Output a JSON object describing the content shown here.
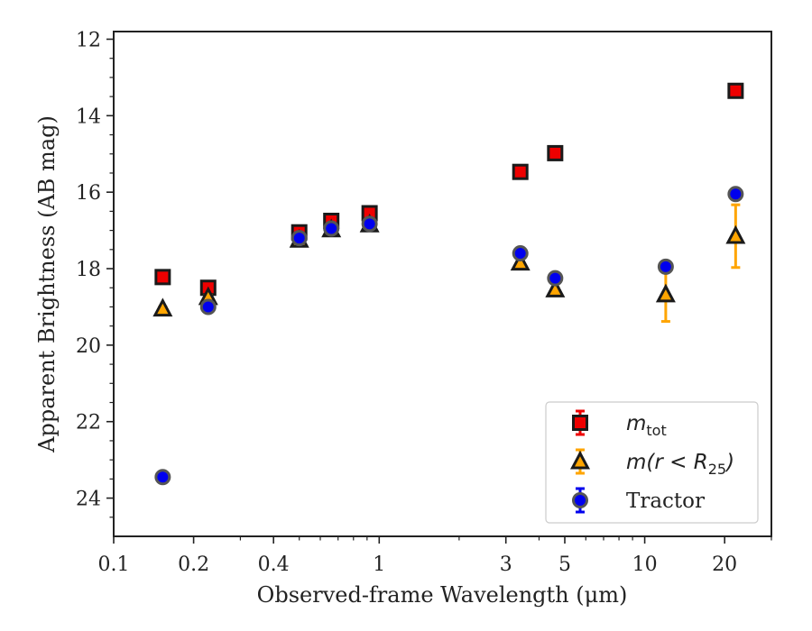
{
  "chart_data": {
    "type": "scatter",
    "xlabel": "Observed-frame Wavelength (μm)",
    "ylabel": "Apparent Brightness (AB mag)",
    "xscale": "log",
    "xlim": [
      0.1,
      30
    ],
    "ylim": [
      25,
      11.8
    ],
    "y_inverted": true,
    "x_ticks": [
      0.1,
      0.2,
      0.4,
      1,
      3,
      5,
      10,
      20
    ],
    "x_tick_labels": [
      "0.1",
      "0.2",
      "0.4",
      "1",
      "3",
      "5",
      "10",
      "20"
    ],
    "y_ticks": [
      12,
      14,
      16,
      18,
      20,
      22,
      24
    ],
    "y_tick_labels": [
      "12",
      "14",
      "16",
      "18",
      "20",
      "22",
      "24"
    ],
    "grid": false,
    "legend_position": "bottom-right",
    "series": [
      {
        "name": "m_tot",
        "legend_main": "m",
        "legend_sub": "tot",
        "marker": "square",
        "color": "#ee0000",
        "edge_color": "#1a1a1a",
        "errbar_color": "#ee0000",
        "points": [
          {
            "x": 0.153,
            "y": 18.22,
            "err": 0.05
          },
          {
            "x": 0.227,
            "y": 18.5,
            "err": 0.05
          },
          {
            "x": 0.5,
            "y": 17.05,
            "err": 0.05
          },
          {
            "x": 0.66,
            "y": 16.75,
            "err": 0.05
          },
          {
            "x": 0.92,
            "y": 16.55,
            "err": 0.05
          },
          {
            "x": 3.4,
            "y": 15.47,
            "err": 0.05
          },
          {
            "x": 4.6,
            "y": 14.98,
            "err": 0.05
          },
          {
            "x": 22.0,
            "y": 13.35,
            "err": 0.05
          }
        ]
      },
      {
        "name": "m(r<R25)",
        "legend_main": "m(r < R",
        "legend_sub": "25",
        "legend_tail": ")",
        "marker": "triangle",
        "color": "#ffa500",
        "edge_color": "#1a1a1a",
        "errbar_color": "#ffa500",
        "points": [
          {
            "x": 0.153,
            "y": 19.05,
            "err": 0.05
          },
          {
            "x": 0.227,
            "y": 18.75,
            "err": 0.05
          },
          {
            "x": 0.5,
            "y": 17.25,
            "err": 0.05
          },
          {
            "x": 0.66,
            "y": 16.98,
            "err": 0.05
          },
          {
            "x": 0.92,
            "y": 16.85,
            "err": 0.05
          },
          {
            "x": 3.4,
            "y": 17.85,
            "err": 0.05
          },
          {
            "x": 4.6,
            "y": 18.55,
            "err": 0.05
          },
          {
            "x": 12.0,
            "y": 18.68,
            "err": 0.7
          },
          {
            "x": 22.0,
            "y": 17.15,
            "err": 0.82
          }
        ]
      },
      {
        "name": "Tractor",
        "legend_main": "Tractor",
        "marker": "circle",
        "color": "#0000ee",
        "edge_color": "#555555",
        "errbar_color": "#0000ee",
        "points": [
          {
            "x": 0.153,
            "y": 23.45,
            "err": 0.05
          },
          {
            "x": 0.227,
            "y": 19.0,
            "err": 0.05
          },
          {
            "x": 0.5,
            "y": 17.2,
            "err": 0.05
          },
          {
            "x": 0.66,
            "y": 16.95,
            "err": 0.05
          },
          {
            "x": 0.92,
            "y": 16.83,
            "err": 0.05
          },
          {
            "x": 3.4,
            "y": 17.6,
            "err": 0.05
          },
          {
            "x": 4.6,
            "y": 18.25,
            "err": 0.05
          },
          {
            "x": 12.0,
            "y": 17.95,
            "err": 0.05
          },
          {
            "x": 22.0,
            "y": 16.05,
            "err": 0.05
          }
        ]
      }
    ]
  }
}
